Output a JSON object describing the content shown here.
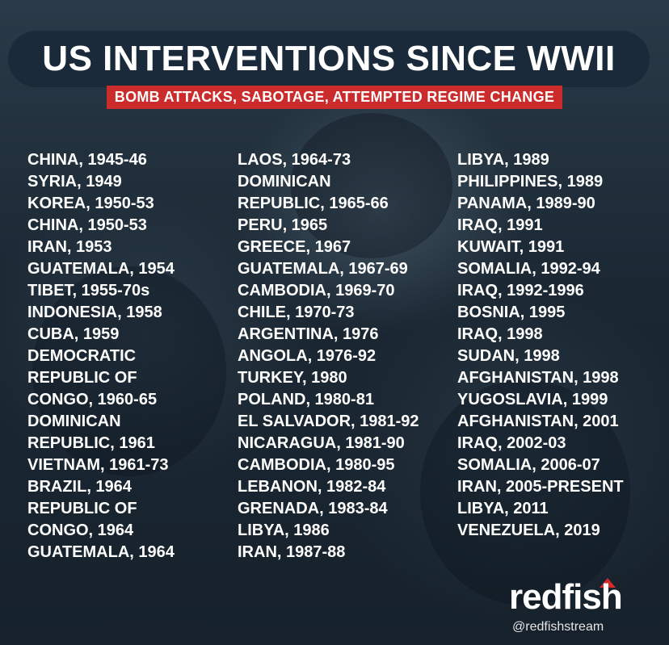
{
  "title": "US INTERVENTIONS SINCE WWII",
  "subtitle": "BOMB ATTACKS, SABOTAGE, ATTEMPTED REGIME CHANGE",
  "columns": [
    [
      "CHINA, 1945-46",
      "SYRIA, 1949",
      "KOREA, 1950-53",
      "CHINA, 1950-53",
      "IRAN, 1953",
      "GUATEMALA, 1954",
      "TIBET, 1955-70s",
      "INDONESIA, 1958",
      "CUBA, 1959",
      "DEMOCRATIC",
      "REPUBLIC OF",
      "CONGO, 1960-65",
      "DOMINICAN",
      "REPUBLIC, 1961",
      "VIETNAM, 1961-73",
      "BRAZIL, 1964",
      "REPUBLIC OF",
      "CONGO, 1964",
      "GUATEMALA, 1964"
    ],
    [
      "LAOS, 1964-73",
      "DOMINICAN",
      "REPUBLIC, 1965-66",
      "PERU, 1965",
      "GREECE, 1967",
      "GUATEMALA, 1967-69",
      "CAMBODIA, 1969-70",
      "CHILE, 1970-73",
      "ARGENTINA, 1976",
      "ANGOLA, 1976-92",
      "TURKEY, 1980",
      "POLAND, 1980-81",
      "EL SALVADOR, 1981-92",
      "NICARAGUA, 1981-90",
      "CAMBODIA, 1980-95",
      "LEBANON, 1982-84",
      "GRENADA, 1983-84",
      "LIBYA, 1986",
      "IRAN, 1987-88"
    ],
    [
      "LIBYA, 1989",
      "PHILIPPINES, 1989",
      "PANAMA, 1989-90",
      "IRAQ, 1991",
      "KUWAIT, 1991",
      "SOMALIA, 1992-94",
      "IRAQ, 1992-1996",
      "BOSNIA, 1995",
      "IRAQ, 1998",
      "SUDAN, 1998",
      "AFGHANISTAN, 1998",
      "YUGOSLAVIA, 1999",
      "AFGHANISTAN, 2001",
      "IRAQ, 2002-03",
      "SOMALIA, 2006-07",
      "IRAN, 2005-PRESENT",
      "LIBYA, 2011",
      "VENEZUELA, 2019"
    ]
  ],
  "logo": "redfish",
  "handle": "@redfishstream",
  "colors": {
    "accent": "#cc2b2b",
    "title_bar": "#1a2a3a",
    "text": "#ffffff"
  }
}
